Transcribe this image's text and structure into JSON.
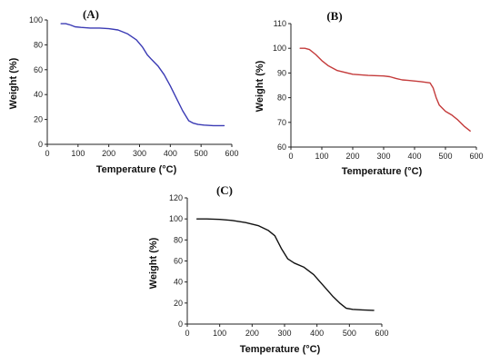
{
  "chart_data": [
    {
      "type": "line",
      "panel_label": "(A)",
      "xlabel": "Temperature (°C)",
      "ylabel": "Weight (%)",
      "xlim": [
        0,
        600
      ],
      "ylim": [
        0,
        100
      ],
      "xticks": [
        0,
        100,
        200,
        300,
        400,
        500,
        600
      ],
      "yticks": [
        0,
        20,
        40,
        60,
        80,
        100
      ],
      "grid": false,
      "color": "#3a3ab4",
      "series": [
        {
          "x": [
            45,
            60,
            75,
            90,
            110,
            140,
            170,
            200,
            230,
            260,
            290,
            310,
            325,
            340,
            360,
            380,
            400,
            420,
            440,
            460,
            475,
            490,
            510,
            540,
            575
          ],
          "y": [
            97,
            97,
            96,
            94.5,
            94,
            93.5,
            93.5,
            93,
            92,
            89,
            84,
            78,
            72,
            68,
            63,
            56,
            47,
            37,
            27,
            19,
            17,
            16,
            15.5,
            15,
            15
          ]
        }
      ]
    },
    {
      "type": "line",
      "panel_label": "(B)",
      "xlabel": "Temperature (°C)",
      "ylabel": "Weight (%)",
      "xlim": [
        0,
        600
      ],
      "ylim": [
        60,
        110
      ],
      "xticks": [
        0,
        100,
        200,
        300,
        400,
        500,
        600
      ],
      "yticks": [
        60,
        70,
        80,
        90,
        100,
        110
      ],
      "grid": false,
      "color": "#c43b3b",
      "series": [
        {
          "x": [
            30,
            45,
            60,
            80,
            100,
            120,
            150,
            200,
            250,
            300,
            320,
            340,
            360,
            380,
            420,
            450,
            460,
            470,
            480,
            500,
            520,
            540,
            560,
            580
          ],
          "y": [
            100,
            100,
            99.5,
            97.5,
            95,
            93,
            91,
            89.5,
            89,
            88.8,
            88.5,
            87.8,
            87.2,
            87,
            86.5,
            86,
            84,
            80,
            77,
            74.5,
            73,
            71,
            68.5,
            66.5
          ]
        }
      ]
    },
    {
      "type": "line",
      "panel_label": "(C)",
      "xlabel": "Temperature (°C)",
      "ylabel": "Weight (%)",
      "xlim": [
        0,
        600
      ],
      "ylim": [
        0,
        120
      ],
      "xticks": [
        0,
        100,
        200,
        300,
        400,
        500,
        600
      ],
      "yticks": [
        0,
        20,
        40,
        60,
        80,
        100,
        120
      ],
      "grid": false,
      "color": "#111111",
      "series": [
        {
          "x": [
            30,
            60,
            100,
            140,
            180,
            220,
            250,
            270,
            290,
            310,
            330,
            360,
            390,
            410,
            430,
            450,
            470,
            490,
            510,
            540,
            575
          ],
          "y": [
            100,
            100,
            99.5,
            98.5,
            96.5,
            93.5,
            89,
            84,
            72,
            62,
            58,
            54,
            47,
            40,
            33,
            26,
            20,
            15,
            14,
            13.5,
            13
          ]
        }
      ]
    }
  ]
}
